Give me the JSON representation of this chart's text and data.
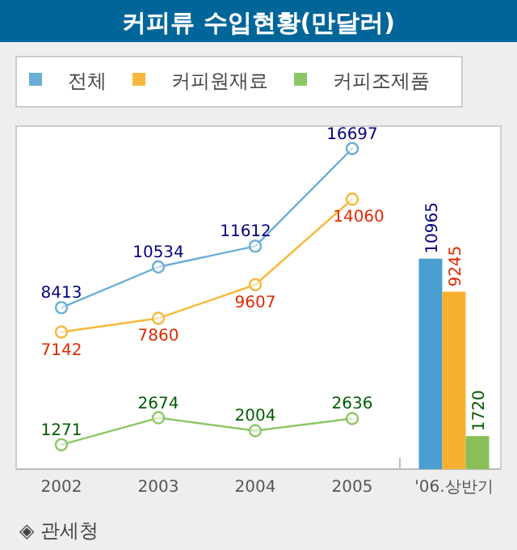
{
  "chart_data": {
    "type": "line",
    "title": "커피류 수입현황(만달러)",
    "categories": [
      "2002",
      "2003",
      "2004",
      "2005",
      "'06.상반기"
    ],
    "series": [
      {
        "name": "전체",
        "color": "#6aaed6",
        "values": [
          8413,
          10534,
          11612,
          16697,
          null
        ]
      },
      {
        "name": "커피원재료",
        "color": "#f8b73a",
        "values": [
          7142,
          7860,
          9607,
          14060,
          null
        ]
      },
      {
        "name": "커피조제품",
        "color": "#8cc765",
        "values": [
          1271,
          2674,
          2004,
          2636,
          null
        ]
      },
      {
        "type": "bar",
        "color": "#4a9fd0",
        "values": [
          null,
          null,
          null,
          null,
          10965
        ]
      },
      {
        "type": "bar",
        "color": "#f8b030",
        "values": [
          null,
          null,
          null,
          null,
          9245
        ]
      },
      {
        "type": "bar",
        "color": "#88c057",
        "values": [
          null,
          null,
          null,
          null,
          1720
        ]
      }
    ],
    "data_labels": true,
    "marker": "circle",
    "legend": "top",
    "annotations": [
      "◈ 관세청"
    ]
  }
}
